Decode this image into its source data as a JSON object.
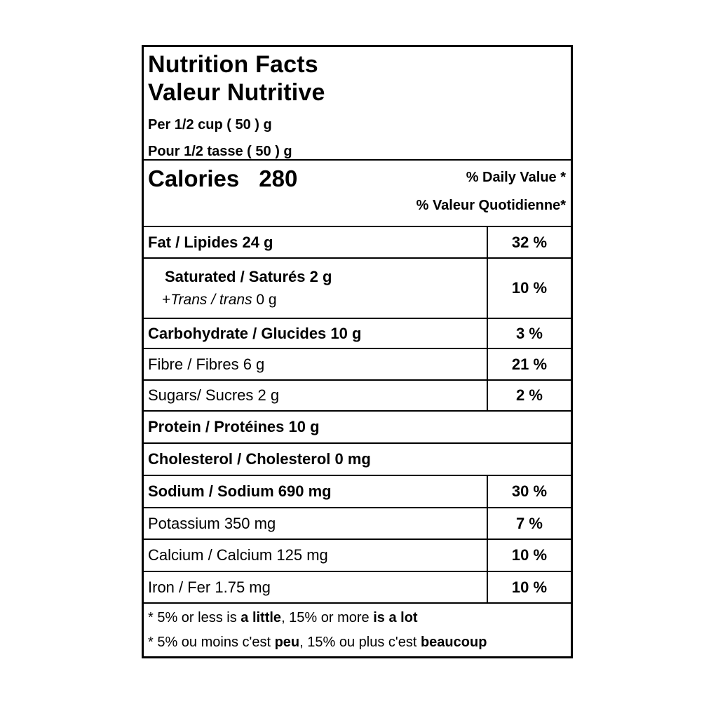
{
  "colors": {
    "background": "#ffffff",
    "text": "#000000",
    "border": "#000000"
  },
  "header": {
    "title_en": "Nutrition Facts",
    "title_fr": "Valeur Nutritive",
    "serving_en": "Per 1/2 cup ( 50 ) g",
    "serving_fr": "Pour 1/2 tasse ( 50 ) g"
  },
  "calories": {
    "label": "Calories",
    "value": "280",
    "daily_value_en": "% Daily Value *",
    "daily_value_fr": "% Valeur Quotidienne*"
  },
  "rows": [
    {
      "label": "Fat / Lipides 24 g",
      "percent": "32 %"
    },
    {
      "label": "Saturated / Saturés 2 g",
      "trans_prefix": "+",
      "trans_italic": "Trans / trans",
      "trans_suffix": " 0 g",
      "percent": "10 %"
    },
    {
      "label": "Carbohydrate / Glucides 10 g",
      "percent": "3 %"
    },
    {
      "label": "Fibre / Fibres 6 g",
      "percent": "21 %"
    },
    {
      "label": "Sugars/ Sucres 2 g",
      "percent": "2 %"
    },
    {
      "label": "Protein / Protéines 10 g",
      "percent": ""
    },
    {
      "label": "Cholesterol / Cholesterol 0 mg",
      "percent": ""
    },
    {
      "label": "Sodium / Sodium 690 mg",
      "percent": "30 %"
    },
    {
      "label": "Potassium 350 mg",
      "percent": "7 %"
    },
    {
      "label": "Calcium / Calcium 125 mg",
      "percent": "10 %"
    },
    {
      "label": "Iron / Fer 1.75 mg",
      "percent": "10 %"
    }
  ],
  "footnotes": {
    "en": {
      "p1": "* 5% or less is ",
      "b1": "a little",
      "p2": ", 15% or more ",
      "b2": "is a lot"
    },
    "fr": {
      "p1": "* 5% ou moins c'est ",
      "b1": "peu",
      "p2": ", 15% ou plus c'est ",
      "b2": "beaucoup"
    }
  }
}
